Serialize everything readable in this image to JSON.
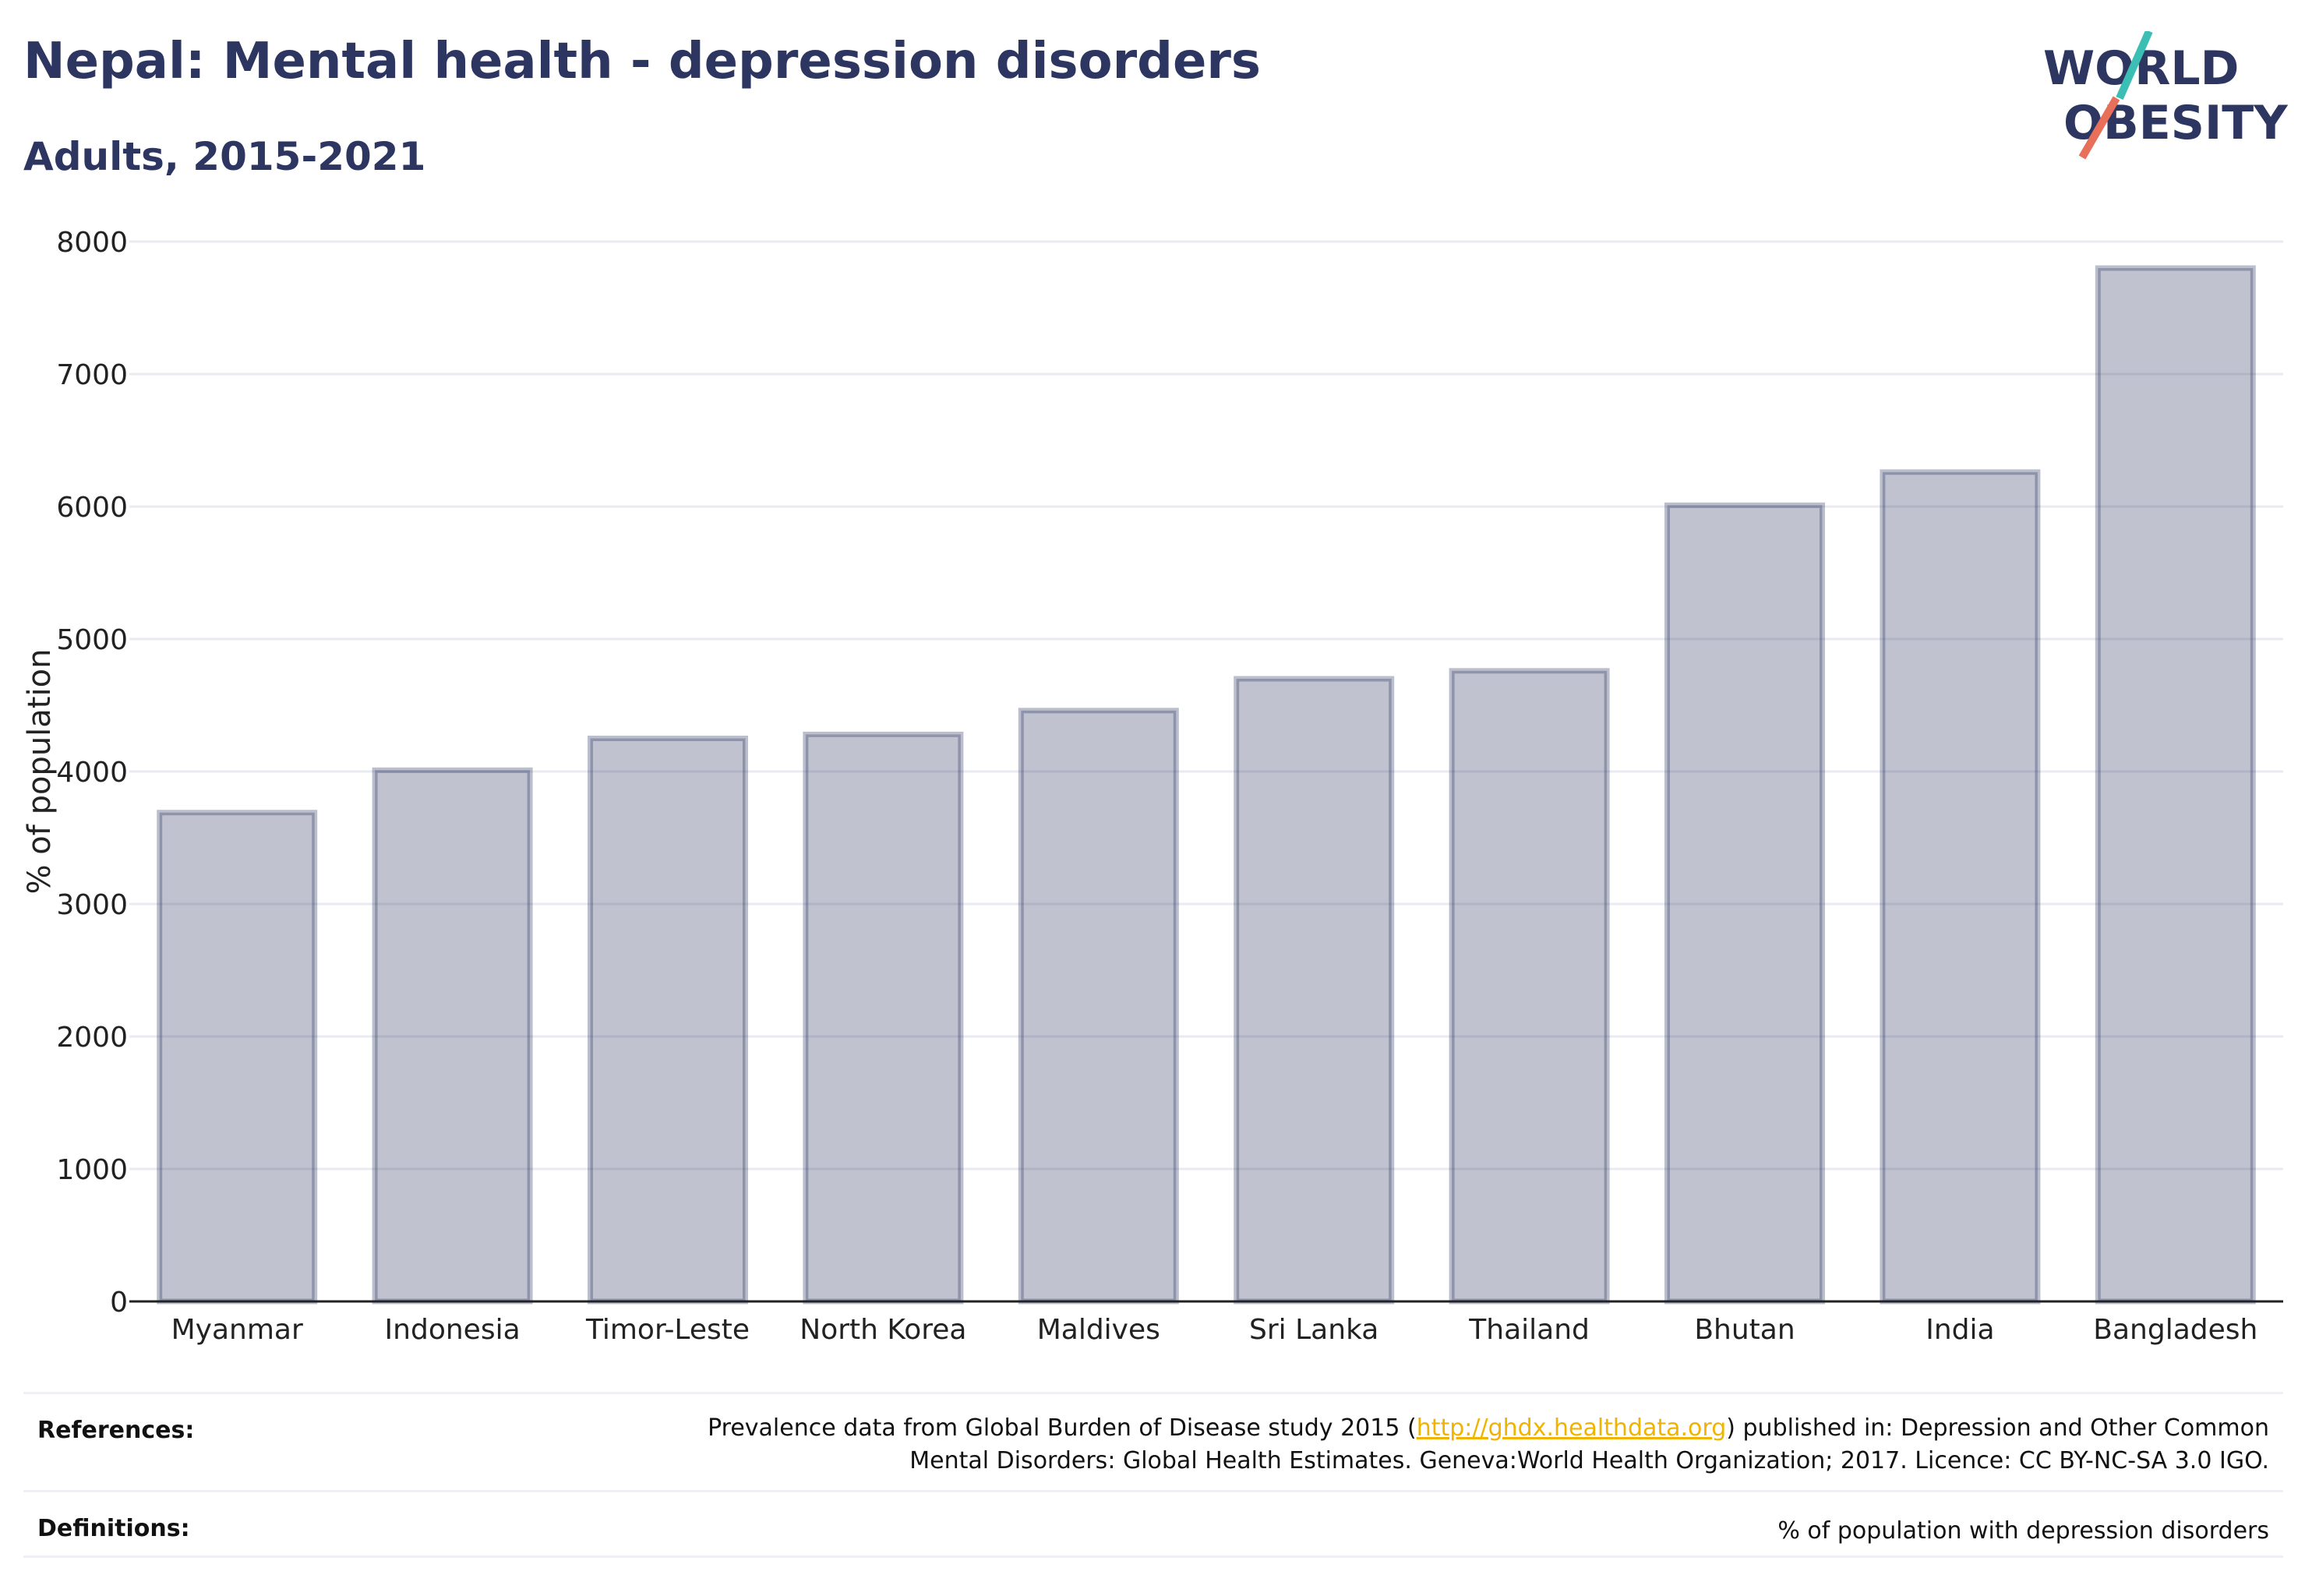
{
  "header": {
    "title": "Nepal: Mental health - depression disorders",
    "subtitle": "Adults, 2015-2021"
  },
  "logo": {
    "line1": "WORLD",
    "line2": "OBESITY",
    "slash_colors": [
      "#3bbfb5",
      "#e8705a"
    ],
    "text_color": "#2d3561"
  },
  "chart_data": {
    "type": "bar",
    "categories": [
      "Myanmar",
      "Indonesia",
      "Timor-Leste",
      "North Korea",
      "Maldives",
      "Sri Lanka",
      "Thailand",
      "Bhutan",
      "India",
      "Bangladesh"
    ],
    "values": [
      3690,
      4010,
      4250,
      4280,
      4460,
      4700,
      4760,
      6010,
      6260,
      7800
    ],
    "ylabel": "% of population",
    "ylim": [
      0,
      8000
    ],
    "yticks": [
      0,
      1000,
      2000,
      3000,
      4000,
      5000,
      6000,
      7000,
      8000
    ],
    "grid": true,
    "bar_color": "#2d3561"
  },
  "footer": {
    "references_label": "References:",
    "references_line1_pre": "Prevalence data from Global Burden of Disease study 2015 (",
    "references_link": "http://ghdx.healthdata.org",
    "references_line1_post": ") published in: Depression and Other Common",
    "references_line2": "Mental Disorders: Global Health Estimates. Geneva:World Health Organization; 2017. Licence: CC BY-NC-SA 3.0 IGO.",
    "definitions_label": "Definitions:",
    "definitions_text": "% of population with depression disorders"
  }
}
